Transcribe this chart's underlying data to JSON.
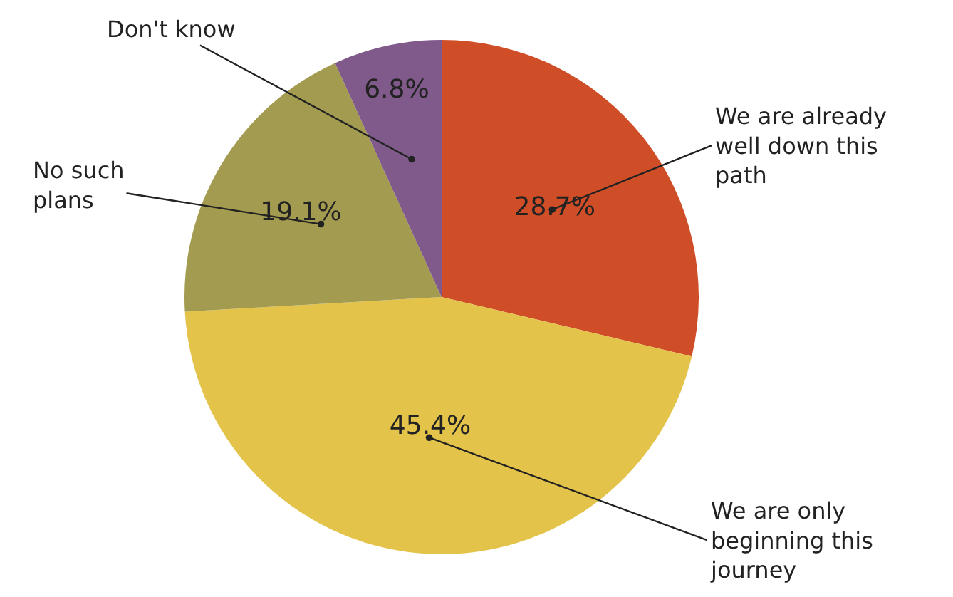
{
  "chart_data": {
    "type": "pie",
    "categories": [
      "We are already well down this path",
      "We are only beginning this journey",
      "No such plans",
      "Don't know"
    ],
    "values": [
      28.7,
      45.4,
      19.1,
      6.8
    ],
    "colors": [
      "#d04e27",
      "#e3c34a",
      "#a39b50",
      "#7f5a8a"
    ],
    "value_labels": [
      "28.7%",
      "45.4%",
      "19.1%",
      "6.8%"
    ],
    "legend": false
  }
}
